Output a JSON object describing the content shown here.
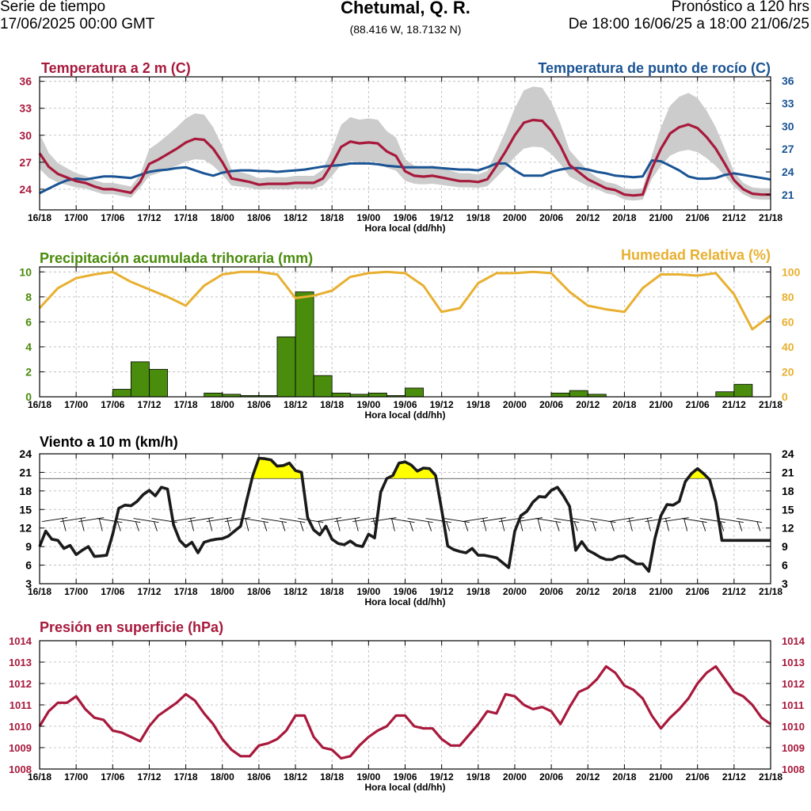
{
  "header": {
    "left_line1": "Serie de tiempo",
    "left_line2": "17/06/2025 00:00 GMT",
    "title": "Chetumal, Q. R.",
    "coords": "(88.416 W, 18.7132 N)",
    "right_line1": "Pronóstico a 120 hrs",
    "right_line2": "De 18:00 16/06/25 a 18:00 21/06/25"
  },
  "colors": {
    "temperature": "#a8193c",
    "dewpoint": "#1a5494",
    "precip": "#4a8c0c",
    "humidity": "#e8b030",
    "wind": "#1a1a1a",
    "wind_highlight": "#ffff00",
    "pressure": "#a8193c",
    "band": "#cccccc"
  },
  "x_tick_labels": [
    "16/18",
    "17/00",
    "17/06",
    "17/12",
    "17/18",
    "18/00",
    "18/06",
    "18/12",
    "18/18",
    "19/00",
    "19/06",
    "19/12",
    "19/18",
    "20/00",
    "20/06",
    "20/12",
    "20/18",
    "21/00",
    "21/06",
    "21/12",
    "21/18"
  ],
  "x_axis_label": "Hora local (dd/hh)",
  "chart_data": [
    {
      "id": "temp",
      "type": "line",
      "title_left": "Temperatura a 2 m (C)",
      "title_right": "Temperatura de punto de rocío (C)",
      "xlabel": "Hora local (dd/hh)",
      "x_hours": [
        0,
        1.5,
        3,
        4.5,
        6,
        7.5,
        9,
        10.5,
        12,
        13.5,
        15,
        16.5,
        18,
        19.5,
        21,
        22.5,
        24,
        25.5,
        27,
        28.5,
        30,
        31.5,
        33,
        34.5,
        36,
        37.5,
        39,
        40.5,
        42,
        43.5,
        45,
        46.5,
        48,
        49.5,
        51,
        52.5,
        54,
        55.5,
        57,
        58.5,
        60,
        61.5,
        63,
        64.5,
        66,
        67.5,
        69,
        70.5,
        72,
        73.5,
        75,
        76.5,
        78,
        79.5,
        81,
        82.5,
        84,
        85.5,
        87,
        88.5,
        90,
        91.5,
        93,
        94.5,
        96,
        97.5,
        99,
        100.5,
        102,
        103.5,
        105,
        106.5,
        108,
        109.5,
        111,
        112.5,
        114,
        115.5,
        117,
        118.5,
        120
      ],
      "yticks_left": [
        24,
        27,
        30,
        33,
        36
      ],
      "yticks_right": [
        21,
        24,
        27,
        30,
        33,
        36
      ],
      "series": [
        {
          "name": "Temperatura a 2 m (C)",
          "axis": "left",
          "ylim": [
            21.7,
            36.5
          ],
          "values": [
            28.0,
            26.5,
            25.7,
            25.3,
            24.9,
            24.7,
            24.3,
            24.0,
            24.0,
            23.8,
            23.6,
            24.8,
            26.8,
            27.3,
            27.9,
            28.5,
            29.2,
            29.6,
            29.5,
            28.5,
            27.0,
            25.2,
            25.0,
            24.8,
            24.5,
            24.6,
            24.6,
            24.6,
            24.7,
            24.7,
            24.7,
            25.2,
            26.8,
            28.7,
            29.3,
            29.1,
            29.2,
            29.1,
            28.2,
            27.7,
            26.0,
            25.5,
            25.4,
            25.5,
            25.3,
            25.1,
            24.9,
            24.9,
            24.8,
            25.1,
            26.6,
            28.2,
            30.0,
            31.4,
            31.7,
            31.6,
            30.5,
            28.8,
            26.7,
            25.9,
            25.1,
            24.6,
            24.1,
            23.9,
            23.4,
            23.3,
            23.4,
            26.3,
            28.5,
            30.2,
            30.9,
            31.2,
            30.8,
            29.8,
            28.5,
            26.8,
            25.0,
            24.0,
            23.5,
            23.4,
            23.4
          ]
        },
        {
          "name": "Temperatura de punto de rocío (C)",
          "axis": "right",
          "ylim": [
            19.0,
            36.5
          ],
          "values": [
            21.2,
            21.8,
            22.4,
            22.9,
            23.1,
            23.0,
            23.2,
            23.4,
            23.4,
            23.3,
            23.2,
            23.6,
            24.0,
            24.2,
            24.3,
            24.5,
            24.6,
            24.2,
            23.8,
            23.5,
            23.9,
            24.1,
            24.2,
            24.2,
            24.1,
            24.1,
            24.0,
            24.1,
            24.2,
            24.3,
            24.5,
            24.7,
            24.8,
            24.9,
            25.1,
            25.1,
            25.1,
            25.0,
            24.8,
            24.7,
            24.6,
            24.6,
            24.6,
            24.6,
            24.5,
            24.4,
            24.3,
            24.3,
            24.2,
            24.6,
            25.1,
            25.1,
            24.2,
            23.5,
            23.5,
            23.5,
            24.0,
            24.3,
            24.5,
            24.5,
            24.3,
            24.0,
            23.8,
            23.5,
            23.4,
            23.3,
            23.4,
            25.5,
            25.4,
            24.8,
            24.2,
            23.4,
            23.1,
            23.1,
            23.2,
            23.6,
            23.8,
            23.6,
            23.4,
            23.2,
            23.0
          ]
        }
      ]
    },
    {
      "id": "precip",
      "type": "bar",
      "title_left": "Precipitación acumulada trihoraria (mm)",
      "title_right": "Humedad Relativa (%)",
      "xlabel": "Hora local (dd/hh)",
      "yticks_left": [
        0,
        2,
        4,
        6,
        8,
        10
      ],
      "yticks_right": [
        0,
        20,
        40,
        60,
        80,
        100
      ],
      "ylim_left": [
        0,
        10.4
      ],
      "ylim_right": [
        0,
        104
      ],
      "bars": [
        {
          "start": 12,
          "end": 15,
          "value": 0.6
        },
        {
          "start": 15,
          "end": 18,
          "value": 2.8
        },
        {
          "start": 18,
          "end": 21,
          "value": 2.2
        },
        {
          "start": 27,
          "end": 30,
          "value": 0.3
        },
        {
          "start": 30,
          "end": 33,
          "value": 0.2
        },
        {
          "start": 33,
          "end": 36,
          "value": 0.1
        },
        {
          "start": 36,
          "end": 39,
          "value": 0.1
        },
        {
          "start": 39,
          "end": 42,
          "value": 4.8
        },
        {
          "start": 42,
          "end": 45,
          "value": 8.4
        },
        {
          "start": 45,
          "end": 48,
          "value": 1.7
        },
        {
          "start": 48,
          "end": 51,
          "value": 0.3
        },
        {
          "start": 51,
          "end": 54,
          "value": 0.2
        },
        {
          "start": 54,
          "end": 57,
          "value": 0.3
        },
        {
          "start": 57,
          "end": 60,
          "value": 0.1
        },
        {
          "start": 60,
          "end": 63,
          "value": 0.7
        },
        {
          "start": 84,
          "end": 87,
          "value": 0.3
        },
        {
          "start": 87,
          "end": 90,
          "value": 0.5
        },
        {
          "start": 90,
          "end": 93,
          "value": 0.2
        },
        {
          "start": 111,
          "end": 114,
          "value": 0.4
        },
        {
          "start": 114,
          "end": 117,
          "value": 1.0
        }
      ],
      "humidity": {
        "name": "Humedad Relativa (%)",
        "x_hours": [
          0,
          3,
          6,
          9,
          12,
          15,
          18,
          21,
          24,
          27,
          30,
          33,
          36,
          39,
          42,
          45,
          48,
          51,
          54,
          57,
          60,
          63,
          66,
          69,
          72,
          75,
          78,
          81,
          84,
          87,
          90,
          93,
          96,
          99,
          102,
          105,
          108,
          111,
          114,
          117,
          120
        ],
        "values": [
          71,
          87,
          95,
          98,
          100,
          92,
          86,
          80,
          73,
          89,
          98,
          100,
          100,
          98,
          79,
          81,
          85,
          96,
          99,
          100,
          99,
          89,
          68,
          71,
          91,
          99,
          99,
          100,
          99,
          84,
          73,
          70,
          68,
          87,
          98,
          98,
          97,
          99,
          82,
          54,
          65
        ]
      }
    },
    {
      "id": "wind",
      "type": "line",
      "title_left": "Viento a 10 m (km/h)",
      "xlabel": "Hora local (dd/hh)",
      "yticks": [
        3,
        6,
        9,
        12,
        15,
        18,
        21,
        24
      ],
      "ylim": [
        3,
        24
      ],
      "threshold": 20,
      "barb_line_value": 13.3,
      "x_hours": [
        0,
        1,
        2,
        3,
        4,
        5,
        6,
        7,
        8,
        9,
        10,
        11,
        12,
        13,
        14,
        15,
        16,
        17,
        18,
        19,
        20,
        21,
        22,
        23,
        24,
        25,
        26,
        27,
        28,
        29,
        30,
        31,
        32,
        33,
        34,
        35,
        36,
        37,
        38,
        39,
        40,
        41,
        42,
        43,
        44,
        45,
        46,
        47,
        48,
        49,
        50,
        51,
        52,
        53,
        54,
        55,
        56,
        57,
        58,
        59,
        60,
        61,
        62,
        63,
        64,
        65,
        66,
        67,
        68,
        69,
        70,
        71,
        72,
        73,
        74,
        75,
        76,
        77,
        78,
        79,
        80,
        81,
        82,
        83,
        84,
        85,
        86,
        87,
        88,
        89,
        90,
        91,
        92,
        93,
        94,
        95,
        96,
        97,
        98,
        99,
        100,
        101,
        102,
        103,
        104,
        105,
        106,
        107,
        108,
        109,
        110,
        111,
        112,
        113,
        114,
        115,
        116,
        117,
        118,
        119,
        120
      ],
      "values": [
        9.0,
        11.5,
        10.2,
        10.0,
        8.7,
        9.2,
        7.7,
        8.4,
        9.0,
        7.4,
        7.5,
        7.6,
        11.0,
        15.2,
        15.7,
        15.6,
        16.3,
        17.4,
        18.1,
        17.2,
        18.6,
        18.3,
        12.5,
        10.0,
        9.0,
        9.7,
        8.0,
        9.7,
        10.0,
        10.2,
        10.3,
        10.7,
        11.5,
        12.3,
        16.5,
        20.5,
        23.3,
        23.2,
        23.0,
        22.0,
        22.1,
        22.5,
        21.3,
        21.0,
        13.7,
        11.7,
        10.9,
        12.3,
        10.2,
        9.5,
        9.3,
        9.9,
        9.2,
        9.0,
        11.0,
        10.4,
        17.8,
        20.0,
        20.5,
        22.5,
        22.7,
        22.2,
        21.2,
        21.7,
        21.6,
        20.5,
        15.0,
        9.1,
        8.5,
        8.2,
        8.0,
        8.7,
        7.6,
        7.6,
        7.4,
        7.2,
        6.4,
        5.6,
        11.5,
        14.0,
        14.7,
        16.2,
        17.1,
        17.0,
        18.1,
        18.6,
        17.2,
        15.5,
        8.4,
        9.8,
        8.4,
        7.9,
        7.3,
        6.9,
        6.9,
        7.4,
        7.5,
        6.8,
        6.2,
        6.2,
        5.0,
        10.3,
        14.0,
        15.8,
        15.7,
        16.3,
        19.5,
        20.8,
        21.6,
        20.8,
        19.8,
        16.2,
        10.0,
        10.0,
        10.0,
        10.0,
        10.0,
        10.0,
        10.0,
        10.0,
        10.0
      ]
    },
    {
      "id": "pressure",
      "type": "line",
      "title_left": "Presión en superficie (hPa)",
      "xlabel": "Hora local (dd/hh)",
      "yticks": [
        1008,
        1009,
        1010,
        1011,
        1012,
        1013,
        1014
      ],
      "ylim": [
        1008,
        1014
      ],
      "series": [
        {
          "name": "Presión en superficie (hPa)",
          "x_hours": [
            0,
            1.5,
            3,
            4.5,
            6,
            7.5,
            9,
            10.5,
            12,
            13.5,
            15,
            16.5,
            18,
            19.5,
            21,
            22.5,
            24,
            25.5,
            27,
            28.5,
            30,
            31.5,
            33,
            34.5,
            36,
            37.5,
            39,
            40.5,
            42,
            43.5,
            45,
            46.5,
            48,
            49.5,
            51,
            52.5,
            54,
            55.5,
            57,
            58.5,
            60,
            61.5,
            63,
            64.5,
            66,
            67.5,
            69,
            70.5,
            72,
            73.5,
            75,
            76.5,
            78,
            79.5,
            81,
            82.5,
            84,
            85.5,
            87,
            88.5,
            90,
            91.5,
            93,
            94.5,
            96,
            97.5,
            99,
            100.5,
            102,
            103.5,
            105,
            106.5,
            108,
            109.5,
            111,
            112.5,
            114,
            115.5,
            117,
            118.5,
            120
          ],
          "values": [
            1010.0,
            1010.7,
            1011.1,
            1011.1,
            1011.4,
            1010.8,
            1010.4,
            1010.3,
            1009.8,
            1009.7,
            1009.5,
            1009.3,
            1010.0,
            1010.5,
            1010.8,
            1011.1,
            1011.5,
            1011.2,
            1010.6,
            1010.1,
            1009.4,
            1008.9,
            1008.6,
            1008.6,
            1009.1,
            1009.2,
            1009.4,
            1009.8,
            1010.5,
            1010.5,
            1009.5,
            1009.0,
            1008.9,
            1008.5,
            1008.6,
            1009.1,
            1009.5,
            1009.8,
            1010.0,
            1010.5,
            1010.5,
            1010.0,
            1009.9,
            1009.9,
            1009.4,
            1009.1,
            1009.1,
            1009.6,
            1010.1,
            1010.7,
            1010.6,
            1011.5,
            1011.4,
            1011.0,
            1010.8,
            1010.9,
            1010.7,
            1010.1,
            1010.9,
            1011.6,
            1011.8,
            1012.2,
            1012.8,
            1012.5,
            1011.9,
            1011.7,
            1011.3,
            1010.5,
            1009.9,
            1010.4,
            1010.8,
            1011.3,
            1012.0,
            1012.5,
            1012.8,
            1012.2,
            1011.6,
            1011.4,
            1011.0,
            1010.4,
            1010.1
          ]
        }
      ]
    }
  ]
}
